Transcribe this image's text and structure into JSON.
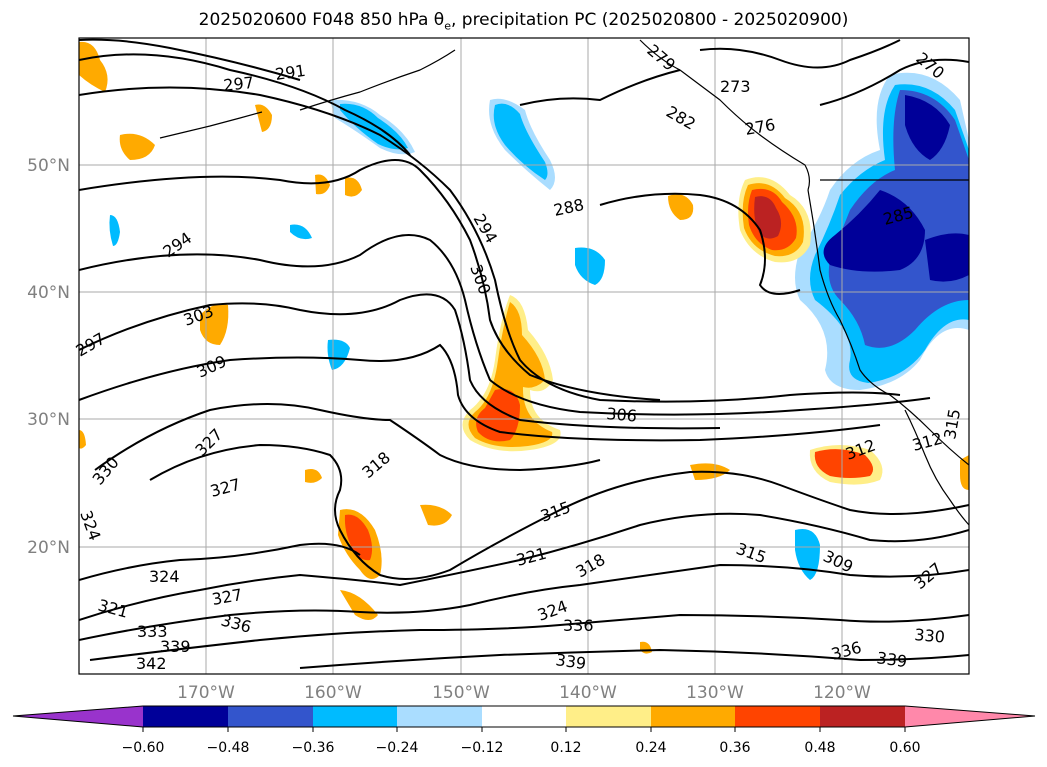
{
  "title": {
    "prefix": "2025020600 F048 850 hPa θ",
    "sub": "e",
    "suffix": ", precipitation PC (2025020800 - 2025020900)"
  },
  "lat_labels": [
    "50°N",
    "40°N",
    "30°N",
    "20°N"
  ],
  "lon_labels": [
    "170°W",
    "160°W",
    "150°W",
    "140°W",
    "130°W",
    "120°W"
  ],
  "contour_labels": [
    "297",
    "291",
    "294",
    "297",
    "303",
    "309",
    "327",
    "330",
    "327",
    "324",
    "324",
    "321",
    "333",
    "339",
    "342",
    "327",
    "336",
    "318",
    "321",
    "315",
    "318",
    "324",
    "336",
    "339",
    "294",
    "300",
    "306",
    "288",
    "273",
    "276",
    "282",
    "279",
    "270",
    "285",
    "312",
    "312",
    "315",
    "315",
    "309",
    "336",
    "339",
    "330",
    "327"
  ],
  "colorbar": {
    "colors": [
      "#9933cc",
      "#000099",
      "#3355cc",
      "#00bbff",
      "#aaddff",
      "#ffffff",
      "#ffee88",
      "#ffaa00",
      "#ff4400",
      "#bb2222",
      "#ff88aa"
    ],
    "tick_labels": [
      "−0.60",
      "−0.48",
      "−0.36",
      "−0.24",
      "−0.12",
      "0.12",
      "0.24",
      "0.36",
      "0.48",
      "0.60"
    ]
  }
}
